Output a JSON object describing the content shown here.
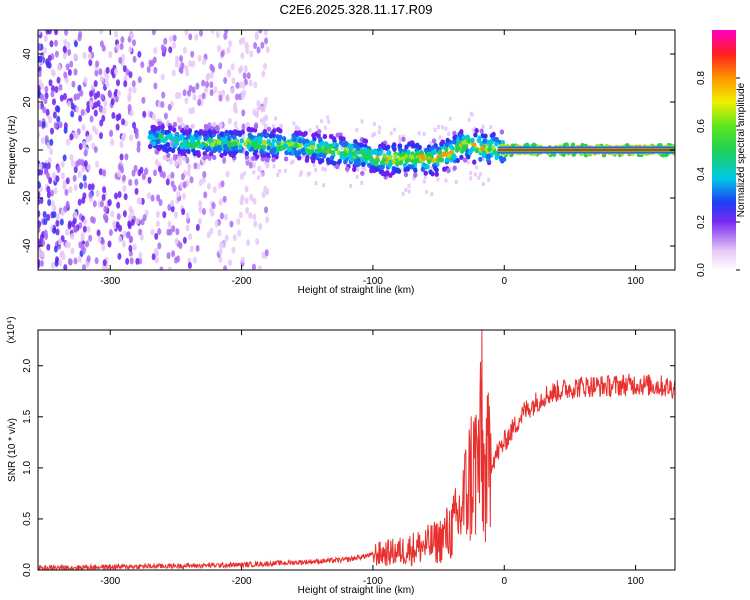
{
  "title": "C2E6.2025.328.11.17.R09",
  "chart_data": [
    {
      "type": "heatmap",
      "xlabel": "Height of straight line (km)",
      "ylabel": "Frequency (Hz)",
      "xlim": [
        -355,
        130
      ],
      "ylim": [
        -50,
        50
      ],
      "xticks": [
        -300,
        -200,
        -100,
        0,
        100
      ],
      "yticks": [
        -40,
        -20,
        0,
        20,
        40
      ],
      "colorbar": {
        "label": "Normalized spectral amplitude",
        "range": [
          0.0,
          1.0
        ],
        "ticks": [
          0.0,
          0.2,
          0.4,
          0.6,
          0.8
        ]
      },
      "ridge": [
        {
          "x": -265,
          "y": 5
        },
        {
          "x": -240,
          "y": 3
        },
        {
          "x": -200,
          "y": 3
        },
        {
          "x": -160,
          "y": 2
        },
        {
          "x": -120,
          "y": -1
        },
        {
          "x": -90,
          "y": -4
        },
        {
          "x": -70,
          "y": -3
        },
        {
          "x": -55,
          "y": -4
        },
        {
          "x": -40,
          "y": -1
        },
        {
          "x": -30,
          "y": 3
        },
        {
          "x": -20,
          "y": 1
        },
        {
          "x": 0,
          "y": 0
        },
        {
          "x": 130,
          "y": 0
        }
      ]
    },
    {
      "type": "line",
      "xlabel": "Height of straight line (km)",
      "ylabel": "SNR (10 * v/v)",
      "yscale_label": "(x10⁴)",
      "xlim": [
        -355,
        130
      ],
      "ylim": [
        0.0,
        2.35
      ],
      "xticks": [
        -300,
        -200,
        -100,
        0,
        100
      ],
      "yticks": [
        0.0,
        0.5,
        1.0,
        1.5,
        2.0
      ],
      "series": [
        {
          "name": "SNR",
          "color": "#e8312f",
          "x": [
            -355,
            -300,
            -250,
            -200,
            -150,
            -120,
            -100,
            -80,
            -60,
            -50,
            -40,
            -35,
            -30,
            -25,
            -20,
            -18,
            -15,
            -10,
            -5,
            0,
            5,
            10,
            15,
            20,
            25,
            30,
            40,
            50,
            60,
            80,
            100,
            120,
            130
          ],
          "y": [
            0.02,
            0.03,
            0.04,
            0.05,
            0.08,
            0.1,
            0.15,
            0.18,
            0.24,
            0.28,
            0.4,
            0.5,
            0.7,
            0.95,
            1.05,
            1.15,
            0.9,
            1.05,
            1.15,
            1.25,
            1.35,
            1.45,
            1.55,
            1.6,
            1.65,
            1.7,
            1.75,
            1.78,
            1.8,
            1.8,
            1.82,
            1.8,
            1.78
          ]
        }
      ],
      "peak": {
        "x": -17,
        "y": 2.35
      }
    }
  ]
}
